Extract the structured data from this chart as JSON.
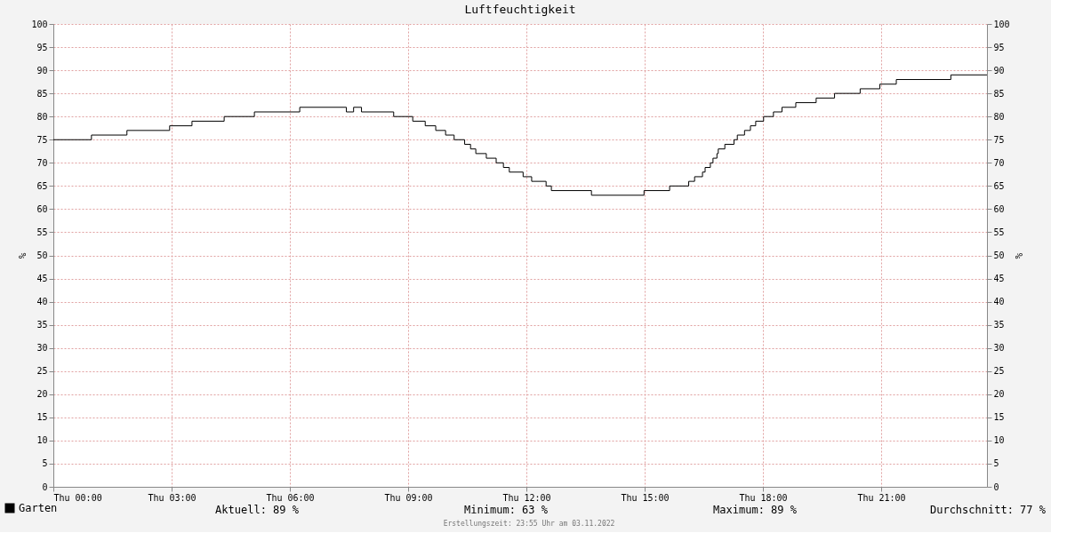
{
  "chart_data": {
    "type": "step",
    "title": "Luftfeuchtigkeit",
    "ylabel": "%",
    "y2label": "%",
    "x": [
      "2022-11-03T00:00",
      "2022-11-03T00:58",
      "2022-11-03T01:52",
      "2022-11-03T02:57",
      "2022-11-03T03:31",
      "2022-11-03T04:20",
      "2022-11-03T05:06",
      "2022-11-03T06:15",
      "2022-11-03T07:26",
      "2022-11-03T07:37",
      "2022-11-03T07:49",
      "2022-11-03T08:38",
      "2022-11-03T09:07",
      "2022-11-03T09:26",
      "2022-11-03T09:42",
      "2022-11-03T09:57",
      "2022-11-03T10:10",
      "2022-11-03T10:26",
      "2022-11-03T10:35",
      "2022-11-03T10:43",
      "2022-11-03T10:59",
      "2022-11-03T11:14",
      "2022-11-03T11:25",
      "2022-11-03T11:34",
      "2022-11-03T11:55",
      "2022-11-03T12:08",
      "2022-11-03T12:30",
      "2022-11-03T12:38",
      "2022-11-03T13:39",
      "2022-11-03T14:59",
      "2022-11-03T15:38",
      "2022-11-03T16:07",
      "2022-11-03T16:16",
      "2022-11-03T16:28",
      "2022-11-03T16:32",
      "2022-11-03T16:40",
      "2022-11-03T16:44",
      "2022-11-03T16:50",
      "2022-11-03T16:52",
      "2022-11-03T17:02",
      "2022-11-03T17:16",
      "2022-11-03T17:21",
      "2022-11-03T17:32",
      "2022-11-03T17:41",
      "2022-11-03T17:49",
      "2022-11-03T18:01",
      "2022-11-03T18:16",
      "2022-11-03T18:29",
      "2022-11-03T18:50",
      "2022-11-03T19:21",
      "2022-11-03T19:49",
      "2022-11-03T20:28",
      "2022-11-03T20:58",
      "2022-11-03T21:23",
      "2022-11-03T22:46",
      "2022-11-03T23:41"
    ],
    "series": [
      {
        "name": "Garten",
        "color": "#000000",
        "values": [
          75,
          76,
          77,
          78,
          79,
          80,
          81,
          82,
          81,
          82,
          81,
          80,
          79,
          78,
          77,
          76,
          75,
          74,
          73,
          72,
          71,
          70,
          69,
          68,
          67,
          66,
          65,
          64,
          63,
          64,
          65,
          66,
          67,
          68,
          69,
          70,
          71,
          72,
          73,
          74,
          75,
          76,
          77,
          78,
          79,
          80,
          81,
          82,
          83,
          84,
          85,
          86,
          87,
          88,
          89,
          89
        ]
      }
    ],
    "xlim": [
      "2022-11-03T00:00",
      "2022-11-03T23:41"
    ],
    "xticks": [
      {
        "value": "2022-11-03T00:00",
        "label": "Thu 00:00"
      },
      {
        "value": "2022-11-03T03:00",
        "label": "Thu 03:00"
      },
      {
        "value": "2022-11-03T06:00",
        "label": "Thu 06:00"
      },
      {
        "value": "2022-11-03T09:00",
        "label": "Thu 09:00"
      },
      {
        "value": "2022-11-03T12:00",
        "label": "Thu 12:00"
      },
      {
        "value": "2022-11-03T15:00",
        "label": "Thu 15:00"
      },
      {
        "value": "2022-11-03T18:00",
        "label": "Thu 18:00"
      },
      {
        "value": "2022-11-03T21:00",
        "label": "Thu 21:00"
      }
    ],
    "ylim": [
      0,
      100
    ],
    "yticks": [
      0,
      5,
      10,
      15,
      20,
      25,
      30,
      35,
      40,
      45,
      50,
      55,
      60,
      65,
      70,
      75,
      80,
      85,
      90,
      95,
      100
    ],
    "y2lim": [
      0,
      100
    ],
    "y2ticks": [
      0,
      5,
      10,
      15,
      20,
      25,
      30,
      35,
      40,
      45,
      50,
      55,
      60,
      65,
      70,
      75,
      80,
      85,
      90,
      95,
      100
    ],
    "grid": true,
    "legend": "bottom left",
    "line_style": "solid",
    "annotations": [
      "Aktuell:  89 %",
      "Minimum:  63 %",
      "Maximum:  89 %",
      "Durchschnitt:  77 %",
      "Erstellungszeit: 23:55 Uhr am 03.11.2022"
    ]
  }
}
